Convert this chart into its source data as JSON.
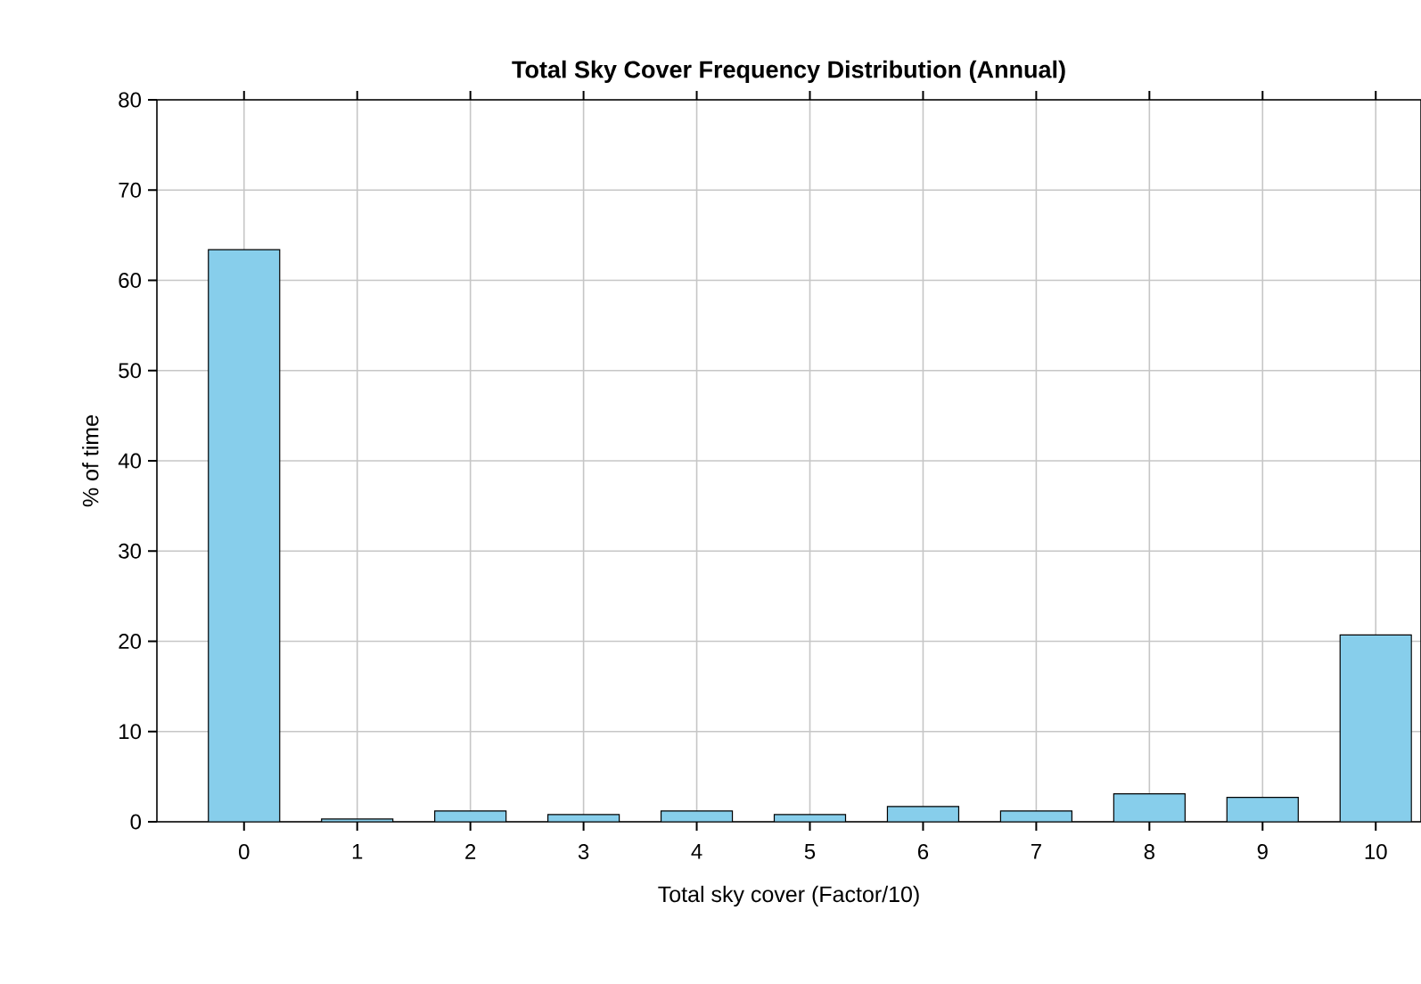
{
  "chart_data": {
    "type": "bar",
    "title": "Total Sky Cover Frequency Distribution (Annual)",
    "xlabel": "Total sky cover (Factor/10)",
    "ylabel": "% of time",
    "categories": [
      "0",
      "1",
      "2",
      "3",
      "4",
      "5",
      "6",
      "7",
      "8",
      "9",
      "10"
    ],
    "values": [
      63.4,
      0.3,
      1.2,
      0.8,
      1.2,
      0.8,
      1.7,
      1.2,
      3.1,
      2.7,
      20.7
    ],
    "color": "#87ceeb",
    "ylim": [
      0,
      80
    ],
    "yticks": [
      0,
      10,
      20,
      30,
      40,
      50,
      60,
      70,
      80
    ],
    "grid": true
  }
}
